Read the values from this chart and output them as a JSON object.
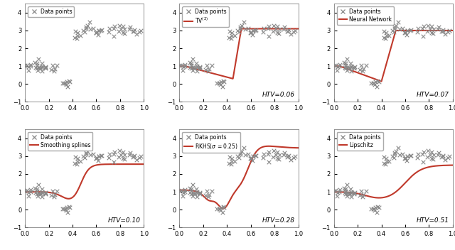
{
  "scatter_color": "#888888",
  "line_color": "#C0392B",
  "line_width": 1.5,
  "ylim": [
    -1,
    4.5
  ],
  "xlim": [
    0,
    1
  ],
  "yticks": [
    -1,
    0,
    1,
    2,
    3,
    4
  ],
  "xticks": [
    0,
    0.2,
    0.4,
    0.6,
    0.8,
    1
  ],
  "subplots": [
    {
      "label": "Data points",
      "curve_label": null,
      "htv": null
    },
    {
      "label": "Data points",
      "curve_label": "TV$^{(2)}$",
      "htv": "HTV=0.06"
    },
    {
      "label": "Data points",
      "curve_label": "Neural Network",
      "htv": "HTV=0.07"
    },
    {
      "label": "Data points",
      "curve_label": "Smoothing splines",
      "htv": "HTV=0.10"
    },
    {
      "label": "Data points",
      "curve_label": "RKHS($\\sigma$ = 0.25)",
      "htv": "HTV=0.28"
    },
    {
      "label": "Data points",
      "curve_label": "Lipschitz",
      "htv": "HTV=0.51"
    }
  ]
}
